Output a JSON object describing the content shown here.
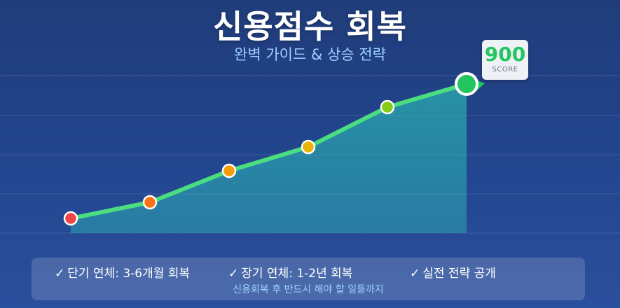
{
  "header": {
    "title": "신용점수 회복",
    "subtitle": "완벽 가이드 & 상승 전략"
  },
  "score_badge": {
    "value": "900",
    "label": "SCORE"
  },
  "chart_data": {
    "type": "line",
    "values": [
      312,
      289,
      244,
      210,
      153,
      120
    ],
    "point_colors": [
      "#ef4444",
      "#f97316",
      "#f59e0b",
      "#eab308",
      "#84cc16",
      "#22c55e"
    ],
    "line_color": "#4ade80",
    "fill_color": "#2dd4bf",
    "grid": true
  },
  "info": {
    "check_icon": "check-icon",
    "items": [
      {
        "text": "단기 연체: 3-6개월 회복"
      },
      {
        "text": "장기 연체: 1-2년 회복"
      },
      {
        "text": "실전 전략 공개"
      }
    ],
    "note": "신용회복 후 반드시 해야 할 일들까지"
  }
}
